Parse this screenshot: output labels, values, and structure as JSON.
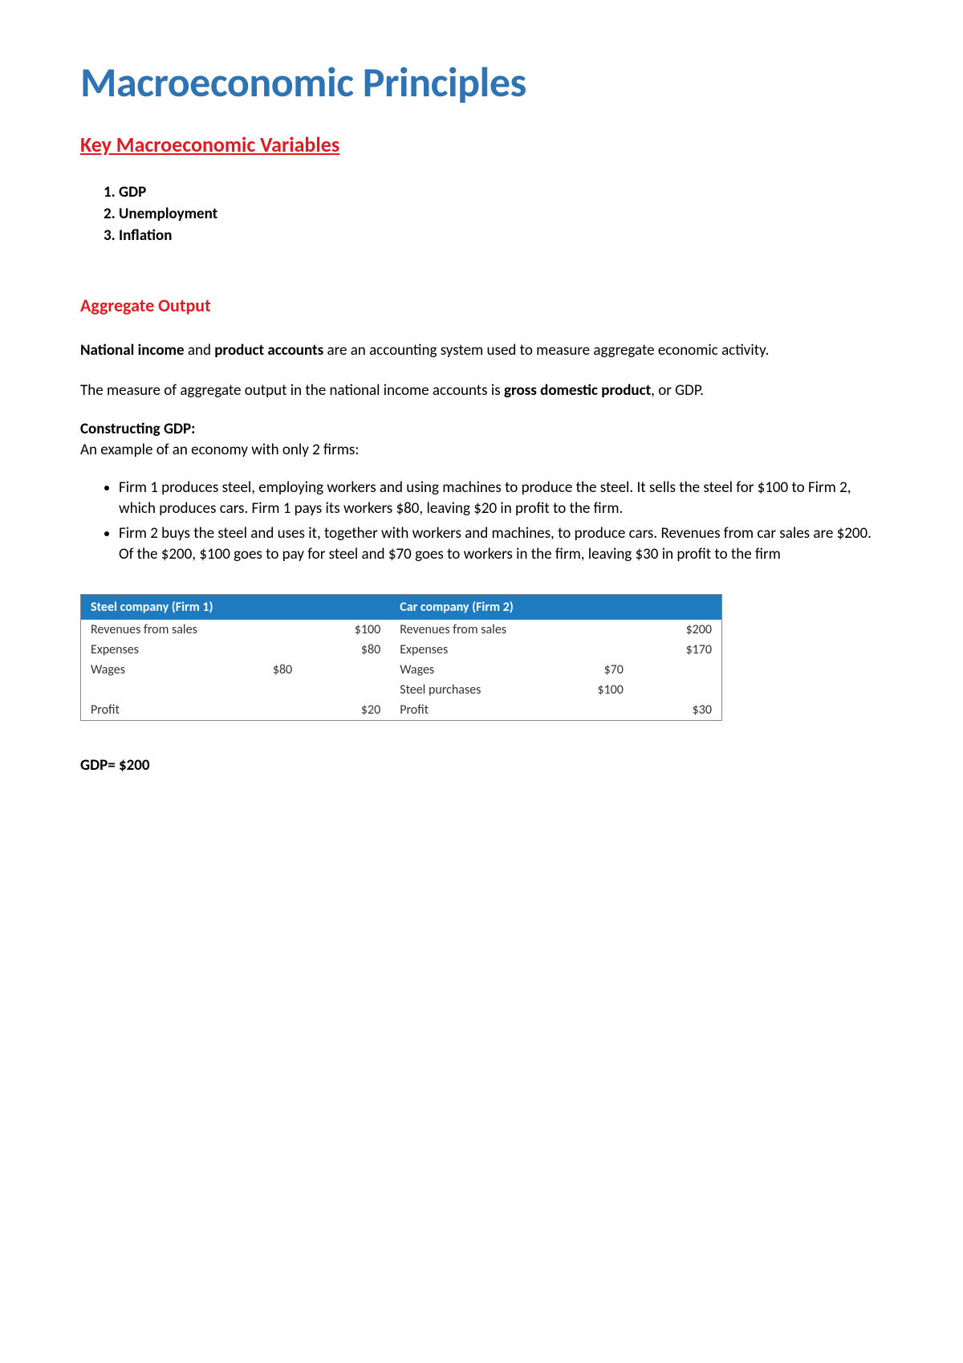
{
  "title": "Macroeconomic Principles",
  "section1": {
    "heading": "Key Macroeconomic Variables",
    "items": [
      "GDP",
      "Unemployment",
      "Inflation"
    ]
  },
  "section2": {
    "heading": "Aggregate Output",
    "para1_bold1": "National income",
    "para1_mid": " and ",
    "para1_bold2": "product accounts",
    "para1_rest": " are an accounting system used to measure aggregate economic activity.",
    "para2_a": "The measure of aggregate output in the national income accounts is ",
    "para2_bold": "gross domestic product",
    "para2_b": ", or GDP.",
    "constructing_heading": "Constructing GDP:",
    "constructing_sub": "An example of an economy with only 2 firms:",
    "bullets": [
      "Firm 1 produces steel, employing workers and using machines to produce the steel. It sells the steel for $100 to Firm 2, which produces cars. Firm 1 pays its workers $80, leaving $20 in profit to the firm.",
      "Firm 2 buys the steel and uses it, together with workers and machines, to produce cars. Revenues from car sales are $200. Of the $200, $100 goes to pay for steel and $70 goes to workers in the firm, leaving $30 in profit to the firm"
    ]
  },
  "table": {
    "background_color": "#1f7bbf",
    "header_text_color": "#ffffff",
    "border_color": "#888888",
    "firm1": {
      "header": "Steel company (Firm 1)",
      "rows": [
        {
          "label": "Revenues from sales",
          "sub": "",
          "value": "$100",
          "indent": false
        },
        {
          "label": "Expenses",
          "sub": "",
          "value": "$80",
          "indent": false
        },
        {
          "label": "Wages",
          "sub": "$80",
          "value": "",
          "indent": true
        },
        {
          "label": "",
          "sub": "",
          "value": "",
          "indent": false
        },
        {
          "label": "Profit",
          "sub": "",
          "value": "$20",
          "indent": false
        }
      ]
    },
    "firm2": {
      "header": "Car company (Firm 2)",
      "rows": [
        {
          "label": "Revenues from sales",
          "sub": "",
          "value": "$200",
          "indent": false
        },
        {
          "label": "Expenses",
          "sub": "",
          "value": "$170",
          "indent": false
        },
        {
          "label": "Wages",
          "sub": "$70",
          "value": "",
          "indent": true
        },
        {
          "label": "Steel purchases",
          "sub": "$100",
          "value": "",
          "indent": true
        },
        {
          "label": "Profit",
          "sub": "",
          "value": "$30",
          "indent": false
        }
      ]
    }
  },
  "gdp_result": "GDP= $200",
  "colors": {
    "title_blue": "#2e74b5",
    "heading_red": "#e11b22",
    "body_black": "#000000"
  }
}
